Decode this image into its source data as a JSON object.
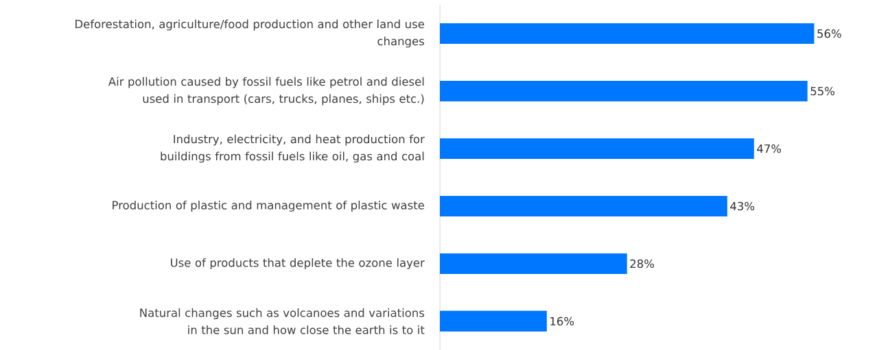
{
  "chart_data": {
    "type": "bar",
    "orientation": "horizontal",
    "categories": [
      "Deforestation, agriculture/food production and other land use changes",
      "Air pollution caused by fossil fuels like petrol and diesel used in transport (cars, trucks, planes, ships etc.)",
      "Industry, electricity, and heat production for buildings from fossil fuels like oil, gas and coal",
      "Production of plastic and management of plastic waste",
      "Use of products that deplete the ozone layer",
      "Natural changes such as volcanoes and variations in the sun and how close the earth is to it"
    ],
    "values": [
      56,
      55,
      47,
      43,
      28,
      16
    ],
    "value_labels": [
      "56%",
      "55%",
      "47%",
      "43%",
      "28%",
      "16%"
    ],
    "color": "#0077ff"
  }
}
